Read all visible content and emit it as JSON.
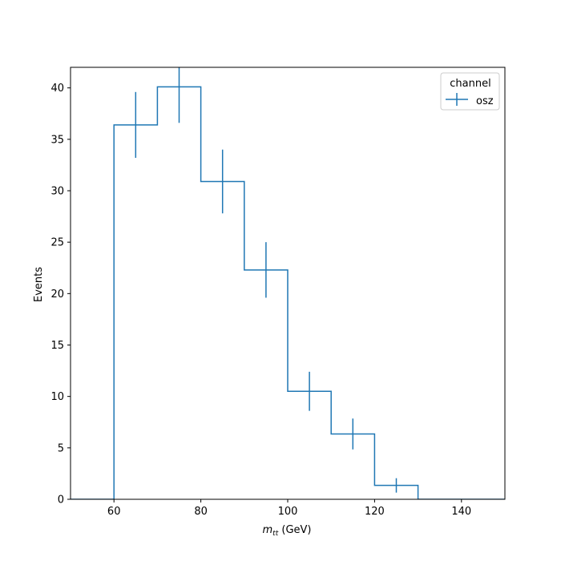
{
  "chart_data": {
    "type": "histogram",
    "xlabel": "m",
    "xlabel_subscript": "tt",
    "xlabel_unit": " (GeV)",
    "ylabel": "Events",
    "xlim": [
      50,
      150
    ],
    "ylim": [
      0,
      42
    ],
    "xticks": [
      60,
      80,
      100,
      120,
      140
    ],
    "yticks": [
      0,
      5,
      10,
      15,
      20,
      25,
      30,
      35,
      40
    ],
    "legend": {
      "title": "channel",
      "location": "upper right"
    },
    "series": [
      {
        "name": "osz",
        "color": "#1f77b4",
        "bin_edges": [
          50,
          60,
          70,
          80,
          90,
          100,
          110,
          120,
          130,
          140,
          150
        ],
        "values": [
          0,
          36.4,
          40.1,
          30.9,
          22.3,
          10.5,
          6.35,
          1.35,
          0,
          0
        ],
        "errors": [
          0,
          3.2,
          3.5,
          3.1,
          2.7,
          1.9,
          1.5,
          0.7,
          0,
          0
        ]
      }
    ]
  }
}
